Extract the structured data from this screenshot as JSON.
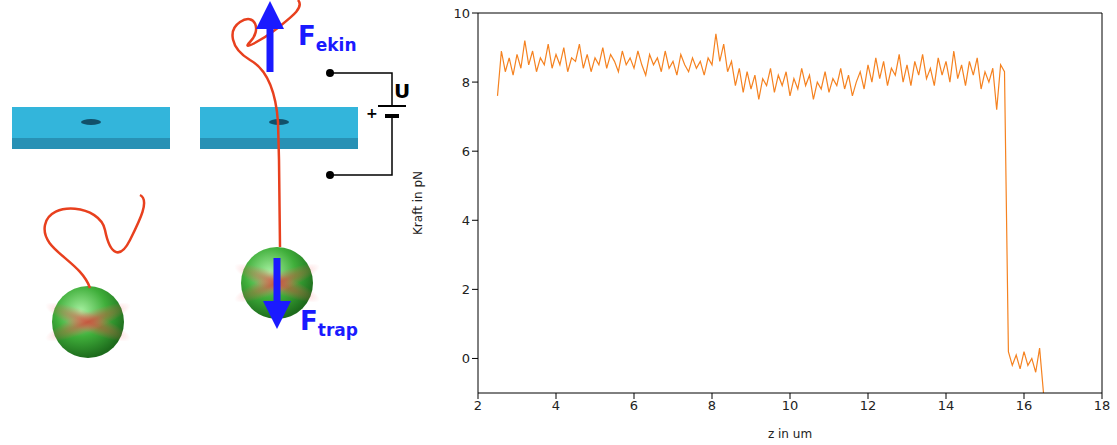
{
  "diagram": {
    "labels": [
      {
        "text": "F",
        "subscript": "ekin"
      },
      {
        "text": "F",
        "subscript": "trap"
      },
      {
        "text": "+"
      },
      {
        "text": "U"
      }
    ]
  },
  "chart_data": {
    "type": "line",
    "x_label": "z in um",
    "y_label": "Kraft in pN",
    "color": "#f58220",
    "grid": false,
    "xlim": [
      2,
      18
    ],
    "xticks": [
      2,
      4,
      6,
      8,
      10,
      12,
      14,
      16,
      18
    ],
    "ylim": [
      -1,
      10
    ],
    "yticks": [
      0,
      2,
      4,
      6,
      8,
      10
    ],
    "x": [
      2.5,
      2.6,
      2.7,
      2.8,
      2.9,
      3.0,
      3.1,
      3.2,
      3.3,
      3.4,
      3.5,
      3.6,
      3.7,
      3.8,
      3.9,
      4.0,
      4.1,
      4.2,
      4.3,
      4.4,
      4.5,
      4.6,
      4.7,
      4.8,
      4.9,
      5.0,
      5.1,
      5.2,
      5.3,
      5.4,
      5.5,
      5.6,
      5.7,
      5.8,
      5.9,
      6.0,
      6.1,
      6.2,
      6.3,
      6.4,
      6.5,
      6.6,
      6.7,
      6.8,
      6.9,
      7.0,
      7.1,
      7.2,
      7.3,
      7.4,
      7.5,
      7.6,
      7.7,
      7.8,
      7.9,
      8.0,
      8.1,
      8.2,
      8.3,
      8.4,
      8.5,
      8.6,
      8.7,
      8.8,
      8.9,
      9.0,
      9.1,
      9.2,
      9.3,
      9.4,
      9.5,
      9.6,
      9.7,
      9.8,
      9.9,
      10.0,
      10.1,
      10.2,
      10.3,
      10.4,
      10.5,
      10.6,
      10.7,
      10.8,
      10.9,
      11.0,
      11.1,
      11.2,
      11.3,
      11.4,
      11.5,
      11.6,
      11.7,
      11.8,
      11.9,
      12.0,
      12.1,
      12.2,
      12.3,
      12.4,
      12.5,
      12.6,
      12.7,
      12.8,
      12.9,
      13.0,
      13.1,
      13.2,
      13.3,
      13.4,
      13.5,
      13.6,
      13.7,
      13.8,
      13.9,
      14.0,
      14.1,
      14.2,
      14.3,
      14.4,
      14.5,
      14.6,
      14.7,
      14.8,
      14.9,
      15.0,
      15.1,
      15.2,
      15.3,
      15.4,
      15.5,
      15.6,
      15.7,
      15.8,
      15.9,
      16.0,
      16.1,
      16.2,
      16.3,
      16.4,
      16.5
    ],
    "values": [
      7.6,
      8.9,
      8.3,
      8.7,
      8.2,
      8.8,
      8.4,
      9.2,
      8.5,
      8.9,
      8.3,
      8.7,
      8.5,
      9.1,
      8.4,
      8.8,
      8.5,
      9.0,
      8.3,
      8.7,
      8.6,
      9.1,
      8.4,
      8.8,
      8.3,
      8.7,
      8.5,
      9.0,
      8.4,
      8.8,
      8.6,
      8.3,
      8.9,
      8.5,
      8.7,
      8.4,
      8.9,
      8.5,
      8.2,
      8.8,
      8.5,
      8.7,
      8.3,
      8.9,
      8.4,
      8.6,
      8.2,
      8.8,
      8.5,
      8.3,
      8.7,
      8.4,
      8.6,
      8.2,
      8.7,
      8.5,
      9.4,
      8.6,
      9.1,
      8.3,
      8.6,
      7.9,
      8.4,
      7.7,
      8.3,
      7.8,
      8.2,
      7.5,
      8.1,
      7.9,
      8.4,
      7.7,
      8.2,
      7.9,
      8.3,
      7.6,
      8.1,
      7.8,
      8.4,
      7.9,
      8.2,
      7.5,
      8.0,
      7.8,
      8.3,
      7.7,
      8.1,
      7.9,
      8.4,
      7.8,
      8.2,
      7.6,
      8.0,
      8.3,
      7.8,
      8.5,
      8.0,
      8.7,
      8.1,
      8.6,
      7.9,
      8.4,
      8.2,
      8.8,
      8.0,
      8.5,
      7.9,
      8.6,
      8.2,
      8.8,
      8.1,
      8.4,
      7.9,
      8.7,
      8.2,
      8.6,
      8.0,
      8.9,
      8.1,
      8.5,
      7.9,
      8.6,
      8.2,
      8.7,
      7.8,
      8.3,
      8.0,
      8.4,
      7.2,
      8.5,
      8.3,
      0.2,
      -0.2,
      0.1,
      -0.3,
      0.2,
      -0.2,
      0.0,
      -0.4,
      0.3,
      -1.0
    ]
  }
}
